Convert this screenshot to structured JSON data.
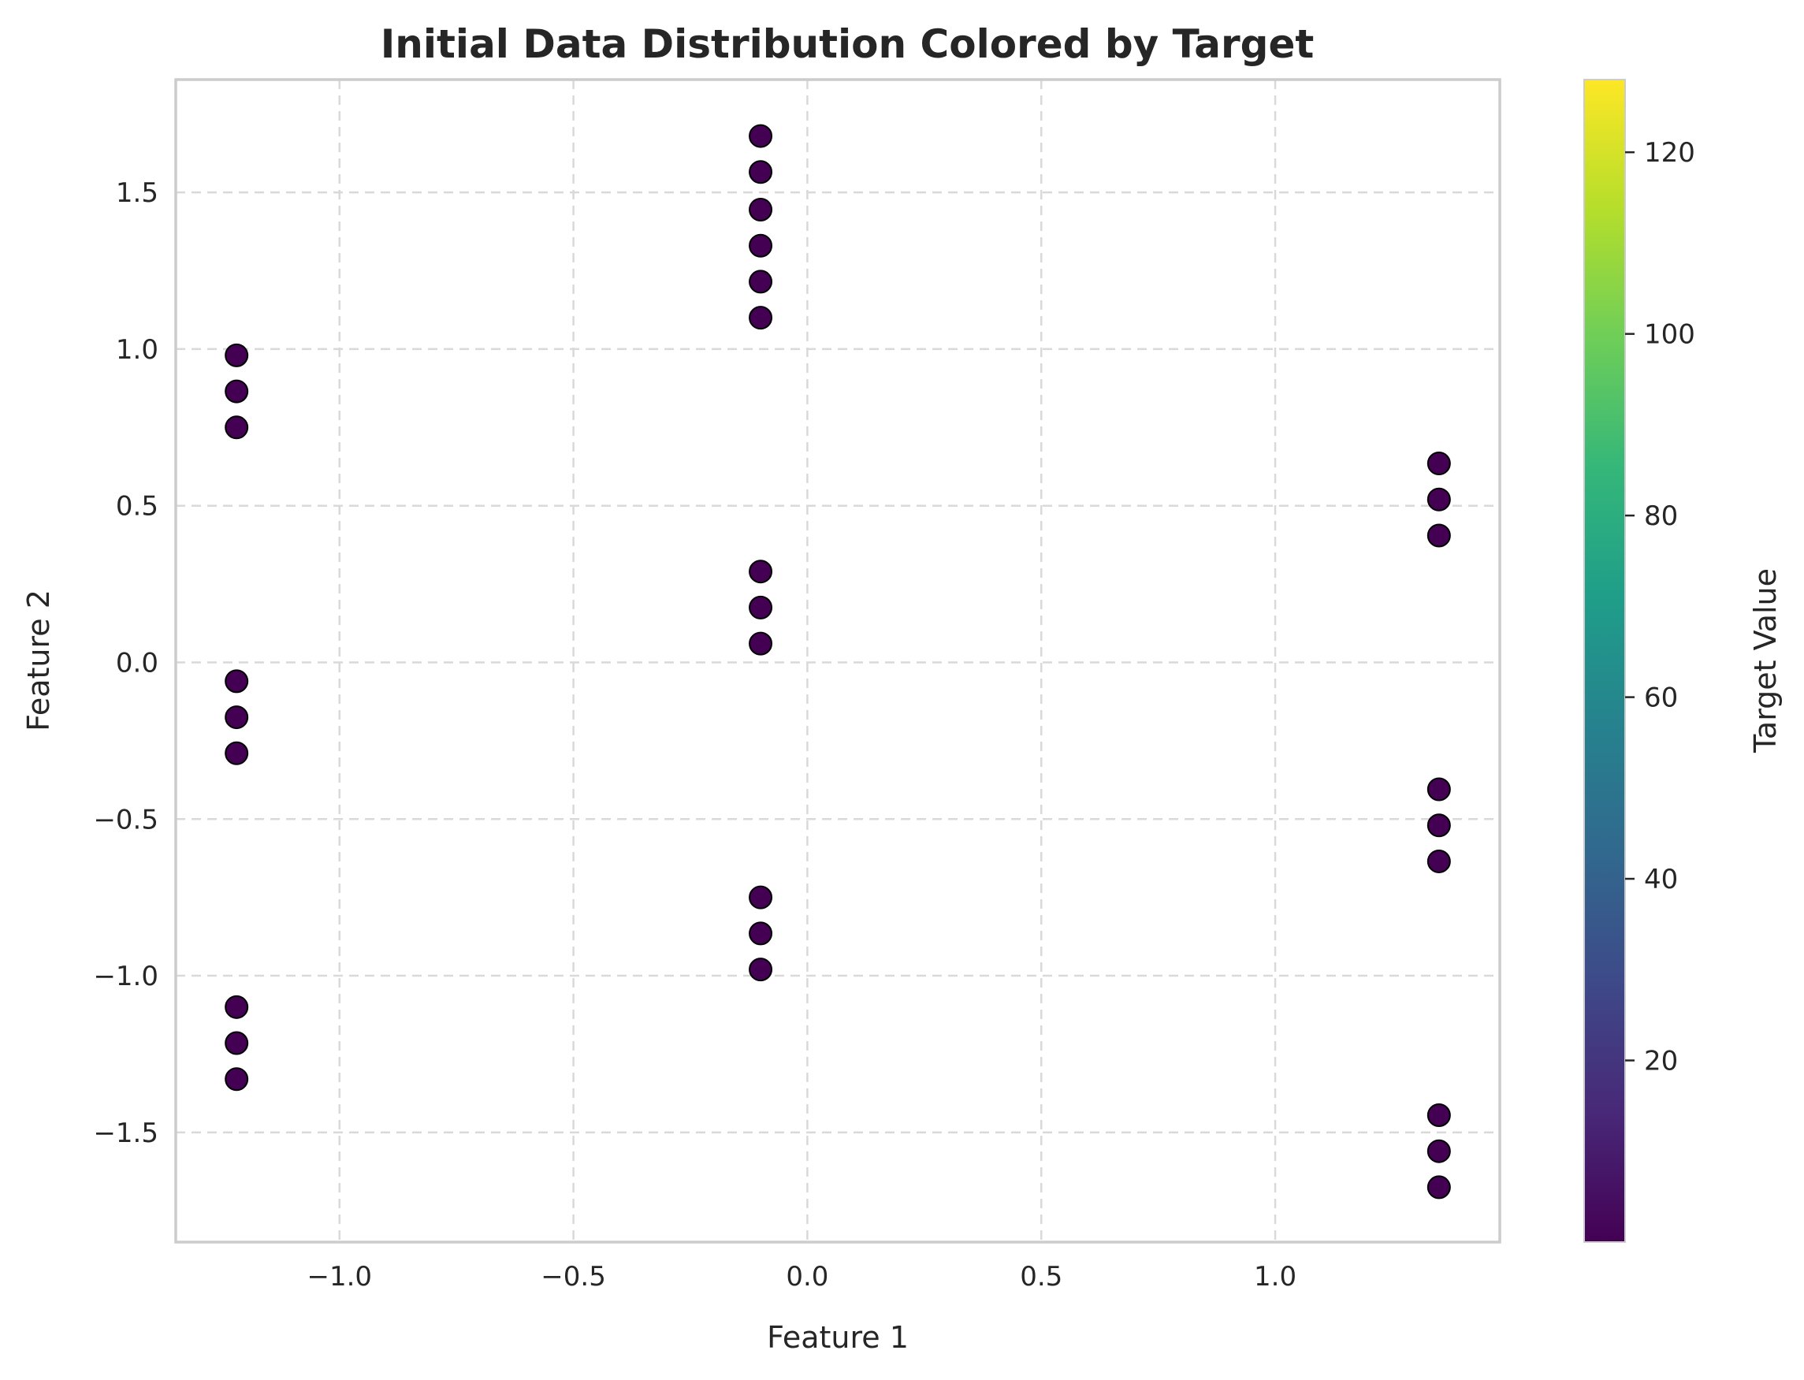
{
  "chart_data": {
    "type": "scatter",
    "title": "Initial Data Distribution Colored by Target",
    "xlabel": "Feature 1",
    "ylabel": "Feature 2",
    "xlim": [
      -1.35,
      1.48
    ],
    "ylim": [
      -1.85,
      1.86
    ],
    "xticks": [
      -1.0,
      -0.5,
      0.0,
      0.5,
      1.0
    ],
    "xtick_labels": [
      "−1.0",
      "−0.5",
      "0.0",
      "0.5",
      "1.0"
    ],
    "yticks": [
      1.5,
      1.0,
      0.5,
      0.0,
      -0.5,
      -1.0,
      -1.5
    ],
    "ytick_labels": [
      "1.5",
      "1.0",
      "0.5",
      "0.0",
      "−0.5",
      "−1.0",
      "−1.5"
    ],
    "grid": true,
    "point_color": "#440154",
    "point_edge_color": "#000000",
    "points": [
      {
        "x": -1.22,
        "y": 0.98
      },
      {
        "x": -1.22,
        "y": 0.865
      },
      {
        "x": -1.22,
        "y": 0.75
      },
      {
        "x": -1.22,
        "y": -0.06
      },
      {
        "x": -1.22,
        "y": -0.175
      },
      {
        "x": -1.22,
        "y": -0.29
      },
      {
        "x": -1.22,
        "y": -1.1
      },
      {
        "x": -1.22,
        "y": -1.215
      },
      {
        "x": -1.22,
        "y": -1.33
      },
      {
        "x": -0.1,
        "y": 1.68
      },
      {
        "x": -0.1,
        "y": 1.565
      },
      {
        "x": -0.1,
        "y": 1.445
      },
      {
        "x": -0.1,
        "y": 1.33
      },
      {
        "x": -0.1,
        "y": 1.215
      },
      {
        "x": -0.1,
        "y": 1.1
      },
      {
        "x": -0.1,
        "y": 0.29
      },
      {
        "x": -0.1,
        "y": 0.175
      },
      {
        "x": -0.1,
        "y": 0.06
      },
      {
        "x": -0.1,
        "y": -0.75
      },
      {
        "x": -0.1,
        "y": -0.865
      },
      {
        "x": -0.1,
        "y": -0.98
      },
      {
        "x": 1.35,
        "y": 0.635
      },
      {
        "x": 1.35,
        "y": 0.52
      },
      {
        "x": 1.35,
        "y": 0.405
      },
      {
        "x": 1.35,
        "y": -0.405
      },
      {
        "x": 1.35,
        "y": -0.52
      },
      {
        "x": 1.35,
        "y": -0.635
      },
      {
        "x": 1.35,
        "y": -1.445
      },
      {
        "x": 1.35,
        "y": -1.56
      },
      {
        "x": 1.35,
        "y": -1.675
      }
    ],
    "colorbar": {
      "label": "Target Value",
      "colormap": "viridis",
      "range": [
        0,
        128
      ],
      "ticks": [
        20,
        40,
        60,
        80,
        100,
        120
      ],
      "tick_labels": [
        "20",
        "40",
        "60",
        "80",
        "100",
        "120"
      ],
      "colors": [
        "#440154",
        "#482878",
        "#3e4989",
        "#31688e",
        "#26828e",
        "#1f9e89",
        "#35b779",
        "#6ece58",
        "#b5de2b",
        "#fde725"
      ]
    }
  }
}
